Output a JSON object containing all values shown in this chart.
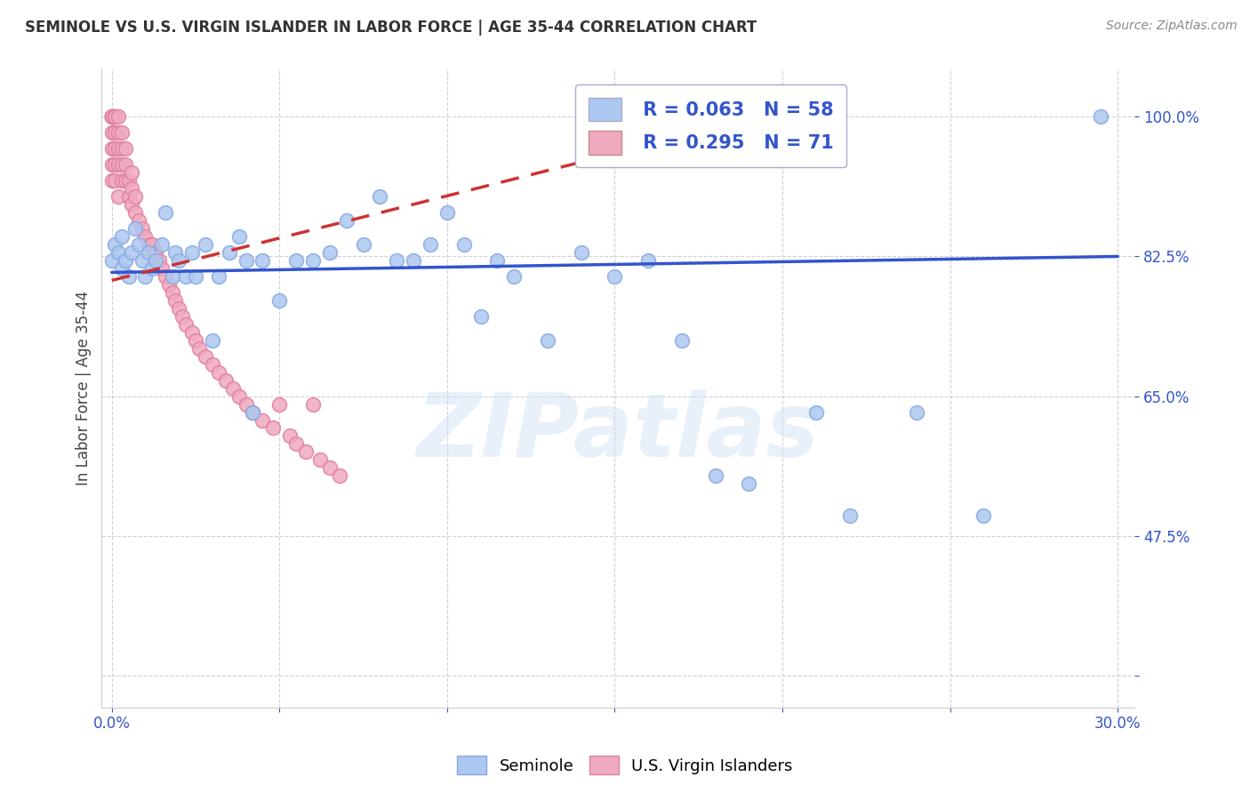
{
  "title": "SEMINOLE VS U.S. VIRGIN ISLANDER IN LABOR FORCE | AGE 35-44 CORRELATION CHART",
  "source": "Source: ZipAtlas.com",
  "ylabel": "In Labor Force | Age 35-44",
  "xlabel": "",
  "xlim": [
    -0.003,
    0.305
  ],
  "ylim": [
    0.26,
    1.06
  ],
  "xticks": [
    0.0,
    0.05,
    0.1,
    0.15,
    0.2,
    0.25,
    0.3
  ],
  "xticklabels": [
    "0.0%",
    "",
    "",
    "",
    "",
    "",
    "30.0%"
  ],
  "ytick_positions": [
    0.3,
    0.475,
    0.65,
    0.825,
    1.0
  ],
  "yticklabels": [
    "",
    "47.5%",
    "65.0%",
    "82.5%",
    "100.0%"
  ],
  "grid_color": "#cccccc",
  "background_color": "#ffffff",
  "seminole_color": "#adc8f0",
  "seminole_edge_color": "#88aae0",
  "virgin_color": "#f0aac0",
  "virgin_edge_color": "#e080a0",
  "trend_seminole_color": "#3355cc",
  "trend_virgin_color": "#cc3333",
  "legend_R_seminole": "R = 0.063",
  "legend_N_seminole": "N = 58",
  "legend_R_virgin": "R = 0.295",
  "legend_N_virgin": "N = 71",
  "watermark": "ZIPatlas",
  "seminole_x": [
    0.0,
    0.001,
    0.002,
    0.003,
    0.003,
    0.004,
    0.005,
    0.006,
    0.007,
    0.008,
    0.009,
    0.01,
    0.011,
    0.012,
    0.013,
    0.015,
    0.016,
    0.018,
    0.019,
    0.02,
    0.022,
    0.024,
    0.025,
    0.028,
    0.03,
    0.032,
    0.035,
    0.038,
    0.04,
    0.042,
    0.045,
    0.05,
    0.055,
    0.06,
    0.065,
    0.07,
    0.075,
    0.08,
    0.085,
    0.09,
    0.095,
    0.1,
    0.105,
    0.11,
    0.115,
    0.12,
    0.13,
    0.14,
    0.15,
    0.16,
    0.17,
    0.18,
    0.19,
    0.21,
    0.22,
    0.24,
    0.26,
    0.295
  ],
  "seminole_y": [
    0.82,
    0.84,
    0.83,
    0.81,
    0.85,
    0.82,
    0.8,
    0.83,
    0.86,
    0.84,
    0.82,
    0.8,
    0.83,
    0.81,
    0.82,
    0.84,
    0.88,
    0.8,
    0.83,
    0.82,
    0.8,
    0.83,
    0.8,
    0.84,
    0.72,
    0.8,
    0.83,
    0.85,
    0.82,
    0.63,
    0.82,
    0.77,
    0.82,
    0.82,
    0.83,
    0.87,
    0.84,
    0.9,
    0.82,
    0.82,
    0.84,
    0.88,
    0.84,
    0.75,
    0.82,
    0.8,
    0.72,
    0.83,
    0.8,
    0.82,
    0.72,
    0.55,
    0.54,
    0.63,
    0.5,
    0.63,
    0.5,
    1.0
  ],
  "virgin_x": [
    0.0,
    0.0,
    0.0,
    0.0,
    0.0,
    0.0,
    0.0,
    0.0,
    0.0,
    0.0,
    0.001,
    0.001,
    0.001,
    0.001,
    0.001,
    0.001,
    0.002,
    0.002,
    0.002,
    0.002,
    0.002,
    0.003,
    0.003,
    0.003,
    0.003,
    0.004,
    0.004,
    0.004,
    0.005,
    0.005,
    0.006,
    0.006,
    0.006,
    0.007,
    0.007,
    0.008,
    0.009,
    0.01,
    0.011,
    0.012,
    0.013,
    0.014,
    0.015,
    0.016,
    0.017,
    0.018,
    0.019,
    0.02,
    0.021,
    0.022,
    0.024,
    0.025,
    0.026,
    0.028,
    0.03,
    0.032,
    0.034,
    0.036,
    0.038,
    0.04,
    0.042,
    0.045,
    0.048,
    0.05,
    0.053,
    0.055,
    0.058,
    0.06,
    0.062,
    0.065,
    0.068
  ],
  "virgin_y": [
    1.0,
    1.0,
    1.0,
    1.0,
    1.0,
    1.0,
    0.98,
    0.96,
    0.94,
    0.92,
    1.0,
    1.0,
    0.98,
    0.96,
    0.94,
    0.92,
    1.0,
    0.98,
    0.96,
    0.94,
    0.9,
    0.98,
    0.96,
    0.94,
    0.92,
    0.96,
    0.94,
    0.92,
    0.92,
    0.9,
    0.93,
    0.91,
    0.89,
    0.9,
    0.88,
    0.87,
    0.86,
    0.85,
    0.84,
    0.84,
    0.83,
    0.82,
    0.81,
    0.8,
    0.79,
    0.78,
    0.77,
    0.76,
    0.75,
    0.74,
    0.73,
    0.72,
    0.71,
    0.7,
    0.69,
    0.68,
    0.67,
    0.66,
    0.65,
    0.64,
    0.63,
    0.62,
    0.61,
    0.64,
    0.6,
    0.59,
    0.58,
    0.64,
    0.57,
    0.56,
    0.55
  ]
}
